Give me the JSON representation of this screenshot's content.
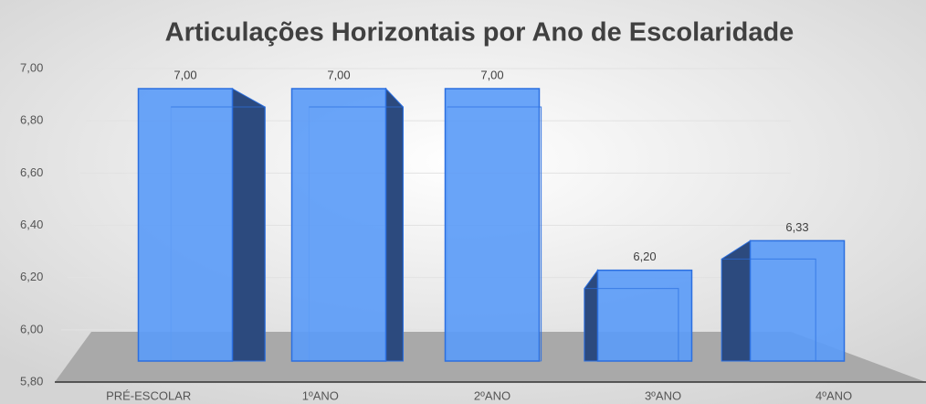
{
  "chart_data": {
    "type": "bar3d",
    "title": "Articulações Horizontais por Ano de Escolaridade",
    "categories": [
      "PRÉ-ESCOLAR",
      "1ºANO",
      "2ºANO",
      "3ºANO",
      "4ºANO"
    ],
    "values": [
      7,
      7,
      7,
      6.2,
      6.33
    ],
    "value_labels": [
      "7,00",
      "7,00",
      "7,00",
      "6,20",
      "6,33"
    ],
    "color": "#5c9cf7",
    "ylim": [
      5.8,
      7
    ],
    "yticks": [
      {
        "value": 5.8,
        "label": "5,80"
      },
      {
        "value": 6,
        "label": "6,00"
      },
      {
        "value": 6.2,
        "label": "6,20"
      },
      {
        "value": 6.4,
        "label": "6,40"
      },
      {
        "value": 6.6,
        "label": "6,60"
      },
      {
        "value": 6.8,
        "label": "6,80"
      },
      {
        "value": 7,
        "label": "7,00"
      }
    ],
    "grid": true
  }
}
